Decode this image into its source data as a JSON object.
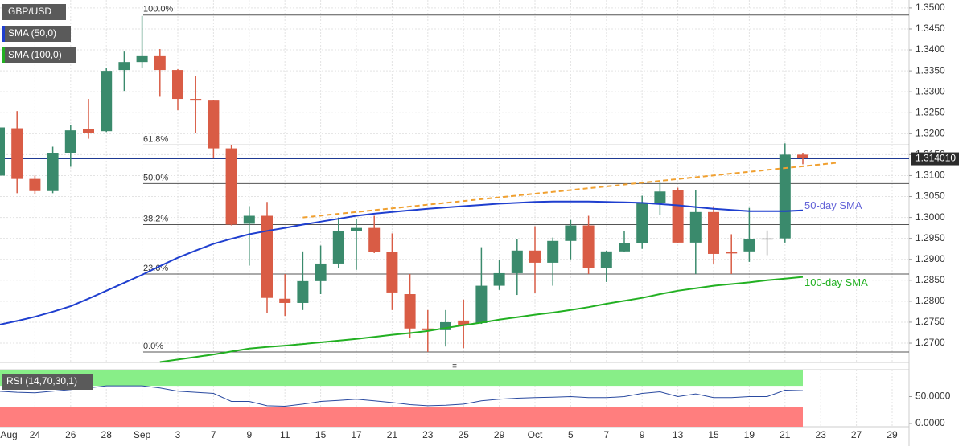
{
  "chart_data": {
    "type": "candlestick",
    "categories": [
      "Aug",
      null,
      "24",
      null,
      "26",
      null,
      "28",
      null,
      "Sep",
      null,
      "3",
      null,
      "7",
      null,
      "9",
      null,
      "11",
      null,
      "15",
      null,
      "17",
      null,
      "21",
      null,
      "23",
      null,
      "25",
      null,
      "29",
      null,
      "Oct",
      null,
      "5",
      null,
      "7",
      null,
      "9",
      null,
      "13",
      null,
      "15",
      null,
      "19",
      null,
      "21",
      null,
      "23",
      null,
      "27",
      null,
      "29",
      null
    ],
    "ohlc": {
      "name": "GBP/USD",
      "up_color": "#3a8a6c",
      "down_color": "#d95c45",
      "flat_color": "#9a9a9a",
      "open": [
        1.31,
        1.3213,
        1.3092,
        1.3063,
        1.3154,
        1.3212,
        1.3206,
        1.3352,
        1.3371,
        1.3385,
        1.3352,
        1.3283,
        1.3279,
        1.3165,
        1.2985,
        1.3004,
        1.2806,
        1.2796,
        1.2848,
        1.289,
        1.2967,
        1.2975,
        1.2917,
        1.2817,
        1.2735,
        1.2731,
        1.2754,
        1.2748,
        1.2837,
        1.2867,
        1.2921,
        1.2892,
        1.2944,
        1.2981,
        1.2879,
        1.2919,
        1.2938,
        1.3035,
        1.3065,
        1.294,
        1.3013,
        1.2917,
        1.2919,
        1.295,
        1.295,
        1.315,
        null,
        null,
        null,
        null,
        null,
        null
      ],
      "high": [
        1.3225,
        1.3254,
        1.31,
        1.3169,
        1.3221,
        1.3283,
        1.3356,
        1.3396,
        1.3481,
        1.3402,
        1.3354,
        1.3337,
        1.328,
        1.3173,
        1.3027,
        1.3037,
        1.2865,
        1.2919,
        1.2933,
        1.3,
        1.2996,
        1.3004,
        1.2962,
        1.2865,
        1.2779,
        1.2779,
        1.2804,
        1.2929,
        1.2898,
        1.2948,
        1.2979,
        1.2952,
        1.2994,
        1.3004,
        1.2921,
        1.2967,
        1.3052,
        1.3083,
        1.3071,
        1.3065,
        1.3027,
        1.296,
        1.3023,
        1.2969,
        1.3177,
        1.3154,
        null,
        null,
        null,
        null,
        null,
        null
      ],
      "low": [
        1.3065,
        1.3058,
        1.3056,
        1.3058,
        1.3121,
        1.3188,
        1.3204,
        1.3302,
        1.3358,
        1.3288,
        1.3256,
        1.3202,
        1.3142,
        1.2981,
        1.2885,
        1.2773,
        1.2765,
        1.2779,
        1.2817,
        1.2879,
        1.2875,
        1.2915,
        1.2779,
        1.2712,
        1.2679,
        1.2692,
        1.2688,
        1.2746,
        1.2827,
        1.2815,
        1.2819,
        1.2837,
        1.29,
        1.2865,
        1.2846,
        1.2917,
        1.2925,
        1.3006,
        1.2938,
        1.2865,
        1.289,
        1.2865,
        1.2894,
        1.291,
        1.294,
        1.3127,
        null,
        null,
        null,
        null,
        null,
        null
      ],
      "close": [
        1.3215,
        1.3092,
        1.3063,
        1.3154,
        1.3208,
        1.3202,
        1.335,
        1.3371,
        1.3385,
        1.3352,
        1.3283,
        1.3279,
        1.3165,
        1.2983,
        1.3004,
        1.2808,
        1.2796,
        1.2848,
        1.289,
        1.2967,
        1.2975,
        1.2917,
        1.2821,
        1.2735,
        1.2731,
        1.275,
        1.2744,
        1.2837,
        1.2867,
        1.2921,
        1.2892,
        1.2944,
        1.2981,
        1.2879,
        1.2919,
        1.2938,
        1.3035,
        1.3062,
        1.294,
        1.3013,
        1.2913,
        1.2915,
        1.2948,
        1.295,
        1.315,
        1.3142,
        null,
        null,
        null,
        null,
        null,
        null
      ]
    },
    "series": [
      {
        "name": "SMA (50,0)",
        "color": "#1f3fcf",
        "values": [
          1.2744,
          1.2753,
          1.2763,
          1.2775,
          1.2788,
          1.2806,
          1.2825,
          1.2844,
          1.2863,
          1.2884,
          1.2904,
          1.2921,
          1.2937,
          1.2949,
          1.296,
          1.2968,
          1.2975,
          1.2983,
          1.299,
          1.2997,
          1.3004,
          1.3009,
          1.3013,
          1.3017,
          1.3021,
          1.3024,
          1.3027,
          1.303,
          1.3033,
          1.3035,
          1.3037,
          1.3038,
          1.3038,
          1.3038,
          1.3037,
          1.3036,
          1.3035,
          1.3032,
          1.3029,
          1.3025,
          1.3021,
          1.3018,
          1.3015,
          1.3015,
          1.3015,
          1.3017,
          null,
          null,
          null,
          null,
          null,
          null
        ]
      },
      {
        "name": "SMA (100,0)",
        "color": "#22b022",
        "values": [
          null,
          null,
          null,
          null,
          null,
          null,
          null,
          null,
          null,
          1.2655,
          1.2661,
          1.2667,
          1.2673,
          1.268,
          1.2687,
          1.2691,
          1.2694,
          1.2698,
          1.2702,
          1.2706,
          1.271,
          1.2715,
          1.272,
          1.2724,
          1.2729,
          1.2736,
          1.2743,
          1.2749,
          1.2756,
          1.2762,
          1.2768,
          1.2773,
          1.2779,
          1.2786,
          1.2794,
          1.2801,
          1.2808,
          1.2817,
          1.2825,
          1.2831,
          1.2837,
          1.2841,
          1.2845,
          1.285,
          1.2854,
          1.2858,
          null,
          null,
          null,
          null,
          null,
          null
        ]
      }
    ],
    "annotations": [
      {
        "text": "50-day SMA",
        "color": "#6464d8"
      },
      {
        "text": "100-day SMA",
        "color": "#22b022"
      }
    ],
    "fibonacci": [
      {
        "label": "100.0%",
        "value": 1.3483
      },
      {
        "label": "61.8%",
        "value": 1.3173
      },
      {
        "label": "50.0%",
        "value": 1.3081
      },
      {
        "label": "38.2%",
        "value": 1.2983
      },
      {
        "label": "23.6%",
        "value": 1.2865
      },
      {
        "label": "0.0%",
        "value": 1.2679
      }
    ],
    "trendline": {
      "x": [
        17,
        47
      ],
      "y": [
        1.3,
        1.3131
      ],
      "color": "#f0a030"
    },
    "last_price": {
      "value": 1.31401,
      "label": "1.314010"
    },
    "ylim": [
      1.2654,
      1.3519
    ],
    "yticks": [
      {
        "value": 1.35,
        "label": "1.3500"
      },
      {
        "value": 1.345,
        "label": "1.3450"
      },
      {
        "value": 1.34,
        "label": "1.3400"
      },
      {
        "value": 1.335,
        "label": "1.3350"
      },
      {
        "value": 1.33,
        "label": "1.3300"
      },
      {
        "value": 1.325,
        "label": "1.3250"
      },
      {
        "value": 1.32,
        "label": "1.3200"
      },
      {
        "value": 1.315,
        "label": "1.3150"
      },
      {
        "value": 1.31,
        "label": "1.3100"
      },
      {
        "value": 1.305,
        "label": "1.3050"
      },
      {
        "value": 1.3,
        "label": "1.3000"
      },
      {
        "value": 1.295,
        "label": "1.2950"
      },
      {
        "value": 1.29,
        "label": "1.2900"
      },
      {
        "value": 1.285,
        "label": "1.2850"
      },
      {
        "value": 1.28,
        "label": "1.2800"
      },
      {
        "value": 1.275,
        "label": "1.2750"
      },
      {
        "value": 1.27,
        "label": "1.2700"
      }
    ],
    "grid": true,
    "rsi": {
      "name": "RSI (14,70,30,1)",
      "color": "#2a4aa0",
      "overbought": 70,
      "oversold": 30,
      "overbought_color": "#88ee88",
      "oversold_color": "#ff7e7e",
      "values": [
        60,
        58,
        57,
        60,
        63,
        66,
        70,
        70,
        70,
        66,
        60,
        58,
        56,
        41,
        41,
        33,
        32,
        36,
        41,
        43,
        45,
        42,
        39,
        35,
        33,
        34,
        36,
        42,
        45,
        47,
        48,
        49,
        50,
        48,
        48,
        50,
        56,
        59,
        50,
        55,
        48,
        48,
        50,
        50,
        62,
        61,
        null,
        null,
        null,
        null,
        null,
        null
      ],
      "ylim": [
        -6,
        100
      ],
      "yticks": [
        {
          "value": 50,
          "label": "50.0000"
        },
        {
          "value": 0,
          "label": "0.0000"
        }
      ]
    }
  }
}
